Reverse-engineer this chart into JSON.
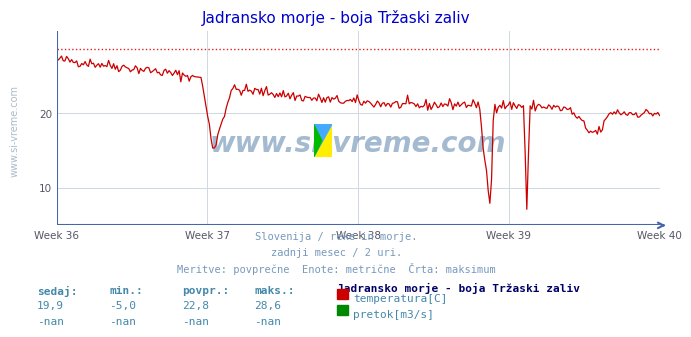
{
  "title": "Jadransko morje - boja Tržaski zaliv",
  "title_color": "#0000cd",
  "bg_color": "#ffffff",
  "plot_bg_color": "#ffffff",
  "grid_color": "#d0d8e0",
  "axis_color": "#4466aa",
  "text_color": "#4488aa",
  "xlabel_weeks": [
    "Week 36",
    "Week 37",
    "Week 38",
    "Week 39",
    "Week 40"
  ],
  "ylim": [
    5,
    31
  ],
  "yticks": [
    10,
    20
  ],
  "dashed_line_y": 28.6,
  "dashed_line_color": "#dd2222",
  "line_color": "#cc0000",
  "watermark_text": "www.si-vreme.com",
  "watermark_color": "#336699",
  "subtitle_lines": [
    "Slovenija / reke in morje.",
    "zadnji mesec / 2 uri.",
    "Meritve: povprečne  Enote: metrične  Črta: maksimum"
  ],
  "subtitle_color": "#7799bb",
  "legend_title": "Jadransko morje - boja Tržaski zaliv",
  "legend_title_color": "#000066",
  "legend_items": [
    {
      "label": "temperatura[C]",
      "color": "#cc0000"
    },
    {
      "label": "pretok[m3/s]",
      "color": "#008800"
    }
  ],
  "table_headers": [
    "sedaj:",
    "min.:",
    "povpr.:",
    "maks.:"
  ],
  "table_row1": [
    "19,9",
    "-5,0",
    "22,8",
    "28,6"
  ],
  "table_row2": [
    "-nan",
    "-nan",
    "-nan",
    "-nan"
  ],
  "table_color": "#4488aa",
  "n_points": 360
}
